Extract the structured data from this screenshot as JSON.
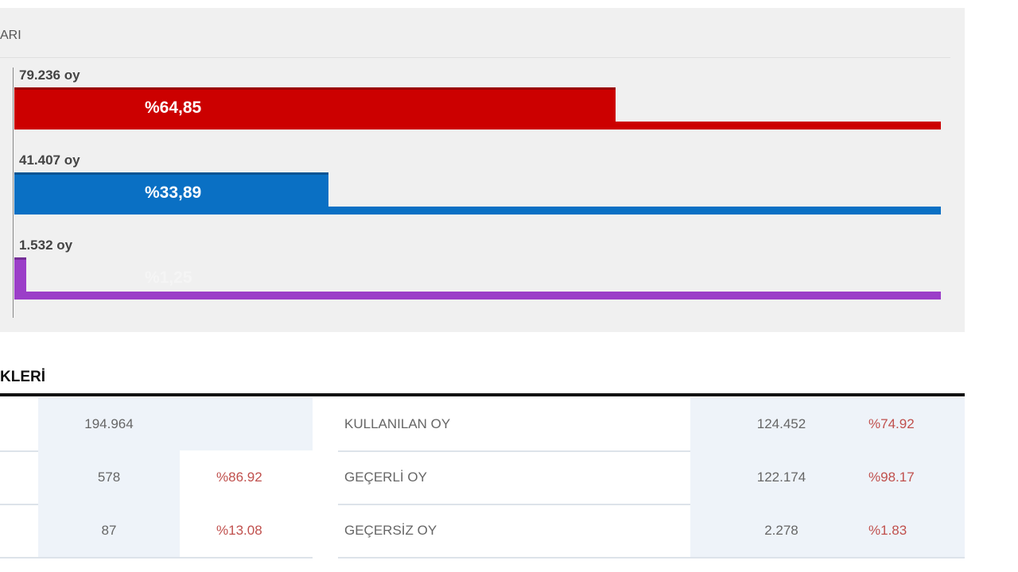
{
  "results": {
    "title": "ARI",
    "bars": [
      {
        "votes": "79.236 oy",
        "percent_label": "%64,85",
        "percent": 64.85,
        "color": "#cc0000"
      },
      {
        "votes": "41.407 oy",
        "percent_label": "%33,89",
        "percent": 33.89,
        "color": "#0a70c4"
      },
      {
        "votes": "1.532 oy",
        "percent_label": "%1,25",
        "percent": 1.25,
        "color": "#9b3ec8"
      }
    ]
  },
  "table": {
    "title": "KLERİ",
    "left_rows": [
      {
        "value": "194.964"
      },
      {
        "value": "578",
        "percent": "%86.92"
      },
      {
        "value": "87",
        "percent": "%13.08"
      }
    ],
    "right_rows": [
      {
        "label": "KULLANILAN OY",
        "value": "124.452",
        "percent": "%74.92"
      },
      {
        "label": "GEÇERLİ OY",
        "value": "122.174",
        "percent": "%98.17"
      },
      {
        "label": "GEÇERSİZ OY",
        "value": "2.278",
        "percent": "%1.83"
      }
    ]
  }
}
